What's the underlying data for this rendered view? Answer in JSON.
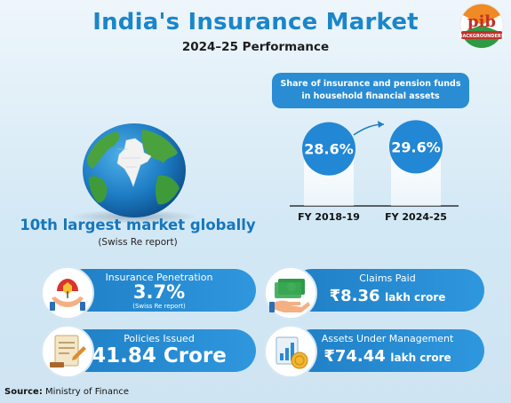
{
  "header": {
    "title": "India's Insurance Market",
    "subtitle": "2024–25 Performance"
  },
  "logo": {
    "letters": "pib",
    "caption": "BACKGROUNDERS"
  },
  "headline": {
    "text": "10th largest market globally",
    "source": "(Swiss Re report)"
  },
  "chart_data": {
    "type": "bar",
    "title": "Share of insurance and pension funds in household financial assets",
    "categories": [
      "FY 2018-19",
      "FY 2024-25"
    ],
    "values": [
      28.6,
      29.6
    ],
    "value_labels": [
      "28.6%",
      "29.6%"
    ],
    "unit": "%"
  },
  "share_title_lines": [
    "Share of insurance and pension funds",
    "in household financial assets"
  ],
  "cards": {
    "penetration": {
      "label": "Insurance Penetration",
      "value": "3.7%",
      "note": "(Swiss Re report)",
      "icon": "umbrella-hands-icon"
    },
    "claims": {
      "label": "Claims Paid",
      "value": "₹8.36",
      "unit": "lakh crore",
      "icon": "cash-hand-icon"
    },
    "policies": {
      "label": "Policies Issued",
      "value": "41.84 Crore",
      "icon": "policy-document-icon"
    },
    "assets": {
      "label": "Assets Under Management",
      "value": "₹74.44",
      "unit": "lakh crore",
      "icon": "assets-chart-icon"
    }
  },
  "footer": {
    "source_label": "Source:",
    "source_value": "Ministry of Finance"
  },
  "colors": {
    "accent": "#1b86c9",
    "card": "#2a8cd3",
    "globe_ocean": "#1f7fc5",
    "globe_land": "#3f9b3a",
    "india": "#f2f2f2"
  }
}
